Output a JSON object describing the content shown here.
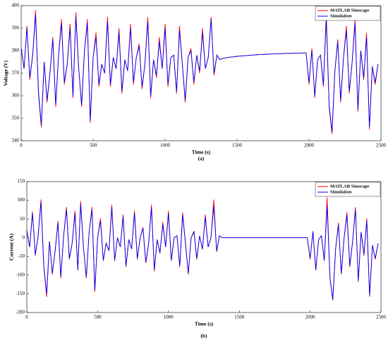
{
  "chart_data": [
    {
      "type": "line",
      "label": "(a)",
      "xlabel": "Time (s)",
      "ylabel": "Voltage (V)",
      "xlim": [
        0,
        2500
      ],
      "xticks": [
        0,
        500,
        1000,
        1500,
        2000,
        2500
      ],
      "ylim": [
        340,
        400
      ],
      "yticks": [
        340,
        350,
        360,
        370,
        380,
        390,
        400
      ],
      "legend": "top-right",
      "x": [
        0,
        20,
        40,
        60,
        80,
        100,
        120,
        140,
        160,
        180,
        200,
        220,
        240,
        260,
        280,
        300,
        320,
        340,
        360,
        380,
        400,
        420,
        440,
        460,
        480,
        500,
        520,
        540,
        560,
        580,
        600,
        620,
        640,
        660,
        680,
        700,
        720,
        740,
        760,
        780,
        800,
        820,
        840,
        860,
        880,
        900,
        920,
        940,
        960,
        980,
        1000,
        1020,
        1040,
        1060,
        1080,
        1100,
        1120,
        1140,
        1160,
        1180,
        1200,
        1220,
        1240,
        1260,
        1280,
        1300,
        1320,
        1340,
        1360,
        1380,
        1400,
        1420,
        1440,
        1460,
        1480,
        1500,
        1520,
        1540,
        1560,
        1580,
        1600,
        1620,
        1640,
        1660,
        1680,
        1700,
        1720,
        1740,
        1760,
        1780,
        1800,
        1820,
        1840,
        1860,
        1880,
        1900,
        1920,
        1940,
        1960,
        1980,
        2000,
        2020,
        2040,
        2060,
        2080,
        2100,
        2120,
        2140,
        2160,
        2180,
        2200,
        2220,
        2240,
        2260,
        2280,
        2300,
        2320,
        2340,
        2360,
        2380,
        2400,
        2420,
        2440,
        2460,
        2480
      ],
      "series": [
        {
          "name": "MATLAB Simscape",
          "color": "#ff0000",
          "values": [
            381,
            372,
            391,
            367,
            378,
            398,
            361,
            346,
            375,
            357,
            370,
            386,
            355,
            378,
            394,
            365,
            374,
            392,
            359,
            397,
            372,
            355,
            380,
            394,
            348,
            377,
            388,
            364,
            374,
            370,
            395,
            364,
            377,
            372,
            390,
            361,
            376,
            371,
            392,
            365,
            377,
            383,
            363,
            374,
            395,
            359,
            376,
            368,
            386,
            372,
            392,
            364,
            377,
            378,
            361,
            391,
            374,
            357,
            377,
            381,
            365,
            378,
            370,
            390,
            372,
            377,
            395,
            369,
            378,
            376,
            376.6,
            376.8,
            377,
            377.2,
            377.3,
            377.5,
            377.6,
            377.7,
            377.8,
            377.9,
            378,
            378.1,
            378.2,
            378.3,
            378.3,
            378.4,
            378.5,
            378.5,
            378.6,
            378.6,
            378.7,
            378.7,
            378.8,
            378.8,
            378.8,
            378.9,
            378.9,
            378.9,
            379,
            379,
            365,
            381,
            359,
            376,
            378,
            364,
            397,
            355,
            343,
            371,
            385,
            357,
            377,
            391,
            361,
            375,
            394,
            353,
            380,
            367,
            388,
            345,
            373,
            365,
            374
          ]
        },
        {
          "name": "Simulation",
          "color": "#0000ff",
          "values": [
            381,
            372,
            390,
            368,
            378,
            396,
            362,
            347,
            375,
            358,
            370,
            385,
            356,
            378,
            392,
            366,
            374,
            390,
            360,
            395,
            372,
            356,
            380,
            392,
            349,
            377,
            386,
            365,
            374,
            370,
            393,
            365,
            377,
            372,
            388,
            362,
            376,
            371,
            390,
            366,
            377,
            382,
            364,
            374,
            393,
            360,
            376,
            369,
            384,
            372,
            390,
            365,
            377,
            378,
            362,
            389,
            374,
            358,
            377,
            380,
            366,
            378,
            371,
            388,
            372,
            377,
            394,
            370,
            378,
            376,
            376.6,
            376.8,
            377,
            377.2,
            377.3,
            377.5,
            377.6,
            377.7,
            377.8,
            377.9,
            378,
            378.1,
            378.2,
            378.3,
            378.3,
            378.4,
            378.5,
            378.5,
            378.6,
            378.6,
            378.7,
            378.7,
            378.8,
            378.8,
            378.8,
            378.9,
            378.9,
            378.9,
            379,
            379,
            366,
            380,
            360,
            376,
            378,
            365,
            394,
            356,
            344,
            371,
            384,
            358,
            377,
            389,
            362,
            375,
            392,
            354,
            380,
            368,
            386,
            346,
            373,
            366,
            374
          ]
        }
      ]
    },
    {
      "type": "line",
      "label": "(b)",
      "xlabel": "Time (s)",
      "ylabel": "Current (A)",
      "xlim": [
        0,
        2500
      ],
      "xticks": [
        0,
        500,
        1000,
        1500,
        2000,
        2500
      ],
      "ylim": [
        -200,
        150
      ],
      "yticks": [
        -200,
        -150,
        -100,
        -50,
        0,
        50,
        100,
        150
      ],
      "legend": "top-right",
      "x": [
        0,
        20,
        40,
        60,
        80,
        100,
        120,
        140,
        160,
        180,
        200,
        220,
        240,
        260,
        280,
        300,
        320,
        340,
        360,
        380,
        400,
        420,
        440,
        460,
        480,
        500,
        520,
        540,
        560,
        580,
        600,
        620,
        640,
        660,
        680,
        700,
        720,
        740,
        760,
        780,
        800,
        820,
        840,
        860,
        880,
        900,
        920,
        940,
        960,
        980,
        1000,
        1020,
        1040,
        1060,
        1080,
        1100,
        1120,
        1140,
        1160,
        1180,
        1200,
        1220,
        1240,
        1260,
        1280,
        1300,
        1320,
        1340,
        1360,
        1380,
        1400,
        1420,
        1440,
        1460,
        1480,
        1500,
        1520,
        1540,
        1560,
        1580,
        1600,
        1620,
        1640,
        1660,
        1680,
        1700,
        1720,
        1740,
        1760,
        1780,
        1800,
        1820,
        1840,
        1860,
        1880,
        1900,
        1920,
        1940,
        1960,
        1980,
        2000,
        2020,
        2040,
        2060,
        2080,
        2100,
        2120,
        2140,
        2160,
        2180,
        2200,
        2220,
        2240,
        2260,
        2280,
        2300,
        2320,
        2340,
        2360,
        2380,
        2400,
        2420,
        2440,
        2460,
        2480
      ],
      "series": [
        {
          "name": "MATLAB Simscape",
          "color": "#ff0000",
          "values": [
            20,
            -25,
            70,
            -48,
            5,
            102,
            -78,
            -158,
            -10,
            -98,
            -35,
            45,
            -108,
            5,
            82,
            -58,
            -15,
            72,
            -88,
            98,
            -25,
            -108,
            15,
            82,
            -145,
            0,
            52,
            -62,
            -15,
            -35,
            88,
            -62,
            0,
            -25,
            62,
            -78,
            -5,
            -30,
            72,
            -58,
            0,
            28,
            -68,
            -15,
            88,
            -90,
            -5,
            -42,
            42,
            -25,
            72,
            -62,
            0,
            5,
            -78,
            68,
            -15,
            -98,
            0,
            18,
            -58,
            5,
            -32,
            62,
            -25,
            0,
            102,
            -38,
            5,
            0,
            0,
            0,
            0,
            0,
            0,
            0,
            0,
            0,
            0,
            0,
            0,
            0,
            0,
            0,
            0,
            0,
            0,
            0,
            0,
            0,
            0,
            0,
            0,
            0,
            0,
            0,
            0,
            0,
            0,
            0,
            -58,
            18,
            -88,
            -5,
            5,
            -62,
            108,
            -108,
            -168,
            -30,
            40,
            -98,
            0,
            68,
            -78,
            -10,
            82,
            -118,
            15,
            -48,
            52,
            -158,
            -20,
            -58,
            -15
          ]
        },
        {
          "name": "Simulation",
          "color": "#0000ff",
          "values": [
            20,
            -25,
            65,
            -45,
            5,
            95,
            -75,
            -150,
            -10,
            -95,
            -35,
            40,
            -105,
            5,
            75,
            -55,
            -15,
            65,
            -85,
            90,
            -25,
            -105,
            15,
            75,
            -140,
            0,
            45,
            -60,
            -15,
            -35,
            80,
            -60,
            0,
            -25,
            55,
            -75,
            -5,
            -30,
            65,
            -55,
            0,
            25,
            -65,
            -15,
            80,
            -85,
            -5,
            -40,
            35,
            -25,
            65,
            -60,
            0,
            5,
            -75,
            60,
            -15,
            -95,
            0,
            15,
            -55,
            5,
            -30,
            55,
            -25,
            0,
            85,
            -35,
            5,
            0,
            0,
            0,
            0,
            0,
            0,
            0,
            0,
            0,
            0,
            0,
            0,
            0,
            0,
            0,
            0,
            0,
            0,
            0,
            0,
            0,
            0,
            0,
            0,
            0,
            0,
            0,
            0,
            0,
            0,
            0,
            -55,
            15,
            -85,
            -5,
            5,
            -60,
            85,
            -105,
            -165,
            -30,
            35,
            -95,
            0,
            60,
            -75,
            -10,
            75,
            -115,
            15,
            -45,
            45,
            -155,
            -20,
            -55,
            -15
          ]
        }
      ]
    }
  ]
}
